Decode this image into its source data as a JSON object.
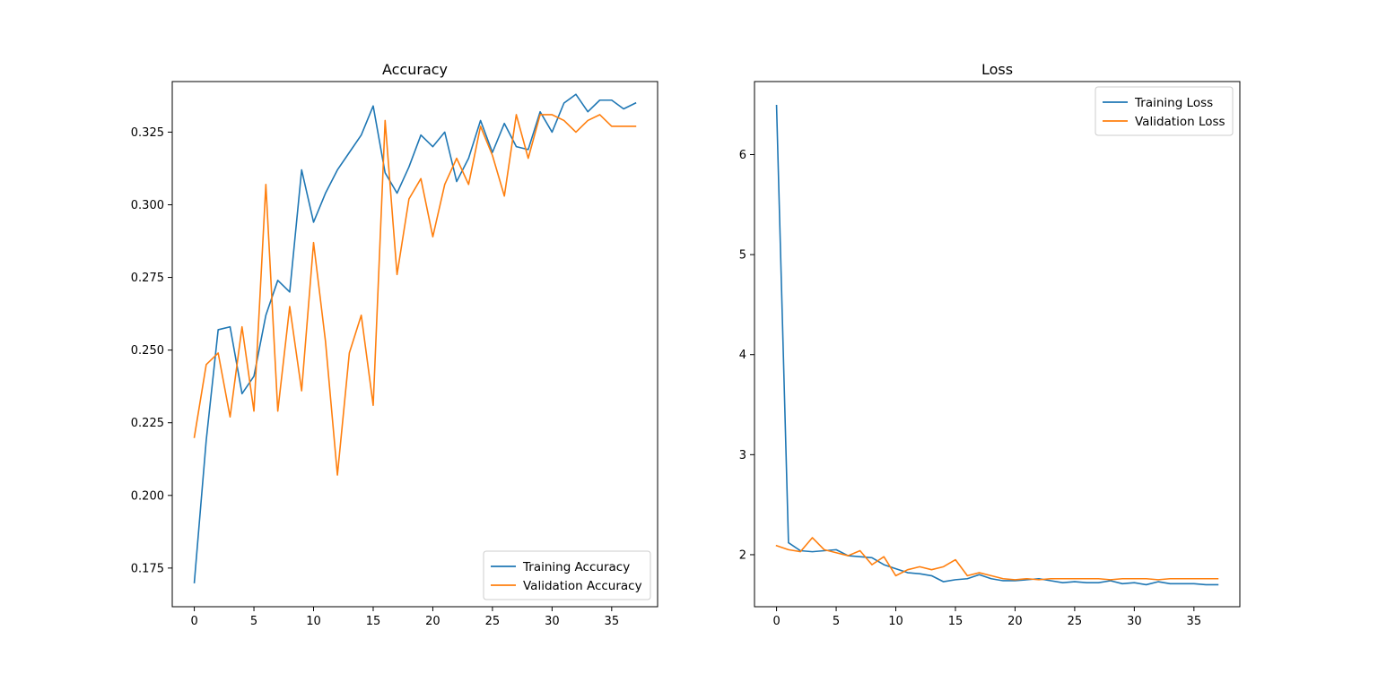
{
  "chart_data": [
    {
      "type": "line",
      "title": "Accuracy",
      "xlabel": "",
      "ylabel": "",
      "xlim": [
        -1.85,
        38.85
      ],
      "ylim": [
        0.1617,
        0.3424
      ],
      "xticks": [
        0,
        5,
        10,
        15,
        20,
        25,
        30,
        35
      ],
      "yticks": [
        0.175,
        0.2,
        0.225,
        0.25,
        0.275,
        0.3,
        0.325
      ],
      "ytick_labels": [
        "0.175",
        "0.200",
        "0.225",
        "0.250",
        "0.275",
        "0.300",
        "0.325"
      ],
      "grid": false,
      "legend": "lower right",
      "x": [
        0,
        1,
        2,
        3,
        4,
        5,
        6,
        7,
        8,
        9,
        10,
        11,
        12,
        13,
        14,
        15,
        16,
        17,
        18,
        19,
        20,
        21,
        22,
        23,
        24,
        25,
        26,
        27,
        28,
        29,
        30,
        31,
        32,
        33,
        34,
        35,
        36,
        37
      ],
      "series": [
        {
          "name": "Training Accuracy",
          "color": "#1f77b4",
          "values": [
            0.17,
            0.219,
            0.257,
            0.258,
            0.235,
            0.241,
            0.262,
            0.274,
            0.27,
            0.312,
            0.294,
            0.304,
            0.312,
            0.318,
            0.324,
            0.334,
            0.311,
            0.304,
            0.313,
            0.324,
            0.32,
            0.325,
            0.308,
            0.316,
            0.329,
            0.318,
            0.328,
            0.32,
            0.319,
            0.332,
            0.325,
            0.335,
            0.338,
            0.332,
            0.336,
            0.336,
            0.333,
            0.335
          ]
        },
        {
          "name": "Validation Accuracy",
          "color": "#ff7f0e",
          "values": [
            0.22,
            0.245,
            0.249,
            0.227,
            0.258,
            0.229,
            0.307,
            0.229,
            0.265,
            0.236,
            0.287,
            0.253,
            0.207,
            0.249,
            0.262,
            0.231,
            0.329,
            0.276,
            0.302,
            0.309,
            0.289,
            0.307,
            0.316,
            0.307,
            0.327,
            0.317,
            0.303,
            0.331,
            0.316,
            0.331,
            0.331,
            0.329,
            0.325,
            0.329,
            0.331,
            0.327,
            0.327,
            0.327
          ]
        }
      ]
    },
    {
      "type": "line",
      "title": "Loss",
      "xlabel": "",
      "ylabel": "",
      "xlim": [
        -1.85,
        38.85
      ],
      "ylim": [
        1.48,
        6.73
      ],
      "xticks": [
        0,
        5,
        10,
        15,
        20,
        25,
        30,
        35
      ],
      "yticks": [
        2,
        3,
        4,
        5,
        6
      ],
      "ytick_labels": [
        "2",
        "3",
        "4",
        "5",
        "6"
      ],
      "grid": false,
      "legend": "upper right",
      "x": [
        0,
        1,
        2,
        3,
        4,
        5,
        6,
        7,
        8,
        9,
        10,
        11,
        12,
        13,
        14,
        15,
        16,
        17,
        18,
        19,
        20,
        21,
        22,
        23,
        24,
        25,
        26,
        27,
        28,
        29,
        30,
        31,
        32,
        33,
        34,
        35,
        36,
        37
      ],
      "series": [
        {
          "name": "Training Loss",
          "color": "#1f77b4",
          "values": [
            6.49,
            2.12,
            2.04,
            2.03,
            2.04,
            2.05,
            1.99,
            1.98,
            1.97,
            1.9,
            1.86,
            1.82,
            1.81,
            1.79,
            1.73,
            1.75,
            1.76,
            1.8,
            1.76,
            1.74,
            1.74,
            1.75,
            1.76,
            1.74,
            1.72,
            1.73,
            1.72,
            1.72,
            1.74,
            1.71,
            1.72,
            1.7,
            1.73,
            1.71,
            1.71,
            1.71,
            1.7,
            1.7
          ]
        },
        {
          "name": "Validation Loss",
          "color": "#ff7f0e",
          "values": [
            2.09,
            2.05,
            2.03,
            2.17,
            2.05,
            2.02,
            1.99,
            2.04,
            1.9,
            1.98,
            1.79,
            1.85,
            1.88,
            1.85,
            1.88,
            1.95,
            1.79,
            1.82,
            1.79,
            1.76,
            1.75,
            1.76,
            1.75,
            1.76,
            1.76,
            1.76,
            1.76,
            1.76,
            1.75,
            1.76,
            1.76,
            1.76,
            1.75,
            1.76,
            1.76,
            1.76,
            1.76,
            1.76
          ]
        }
      ]
    }
  ]
}
